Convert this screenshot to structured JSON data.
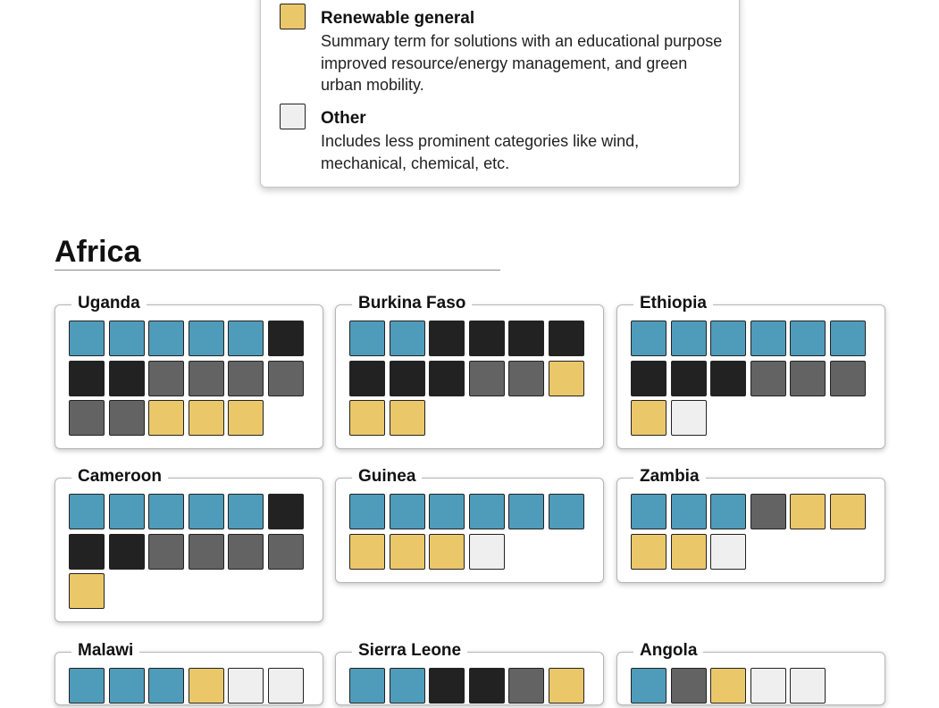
{
  "colors": {
    "solar": "#4f9cba",
    "black": "#222222",
    "gray": "#636363",
    "renewable_general": "#eac86a",
    "other": "#efefef"
  },
  "legend": [
    {
      "key": "renewable_general",
      "title": "Renewable general",
      "description": "Summary term for solutions with an educational purpose improved resource/energy management, and green urban mobility."
    },
    {
      "key": "other",
      "title": "Other",
      "description": "Includes less prominent categories like wind, mechanical, chemical, etc."
    }
  ],
  "region": {
    "title": "Africa"
  },
  "chart_data": {
    "type": "waffle",
    "title": "",
    "countries": [
      {
        "name": "Uganda",
        "cells": [
          "solar",
          "solar",
          "solar",
          "solar",
          "solar",
          "black",
          "black",
          "black",
          "gray",
          "gray",
          "gray",
          "gray",
          "gray",
          "gray",
          "renewable_general",
          "renewable_general",
          "renewable_general"
        ]
      },
      {
        "name": "Burkina Faso",
        "cells": [
          "solar",
          "solar",
          "black",
          "black",
          "black",
          "black",
          "black",
          "black",
          "black",
          "gray",
          "gray",
          "renewable_general",
          "renewable_general",
          "renewable_general"
        ]
      },
      {
        "name": "Ethiopia",
        "cells": [
          "solar",
          "solar",
          "solar",
          "solar",
          "solar",
          "solar",
          "black",
          "black",
          "black",
          "gray",
          "gray",
          "gray",
          "renewable_general",
          "other"
        ]
      },
      {
        "name": "Cameroon",
        "cells": [
          "solar",
          "solar",
          "solar",
          "solar",
          "solar",
          "black",
          "black",
          "black",
          "gray",
          "gray",
          "gray",
          "gray",
          "renewable_general"
        ]
      },
      {
        "name": "Guinea",
        "cells": [
          "solar",
          "solar",
          "solar",
          "solar",
          "solar",
          "solar",
          "renewable_general",
          "renewable_general",
          "renewable_general",
          "other"
        ]
      },
      {
        "name": "Zambia",
        "cells": [
          "solar",
          "solar",
          "solar",
          "gray",
          "renewable_general",
          "renewable_general",
          "renewable_general",
          "renewable_general",
          "other"
        ]
      },
      {
        "name": "Malawi",
        "cells": [
          "solar",
          "solar",
          "solar",
          "renewable_general",
          "other",
          "other"
        ]
      },
      {
        "name": "Sierra Leone",
        "cells": [
          "solar",
          "solar",
          "black",
          "black",
          "gray",
          "renewable_general"
        ]
      },
      {
        "name": "Angola",
        "cells": [
          "solar",
          "gray",
          "renewable_general",
          "other",
          "other"
        ]
      }
    ]
  }
}
